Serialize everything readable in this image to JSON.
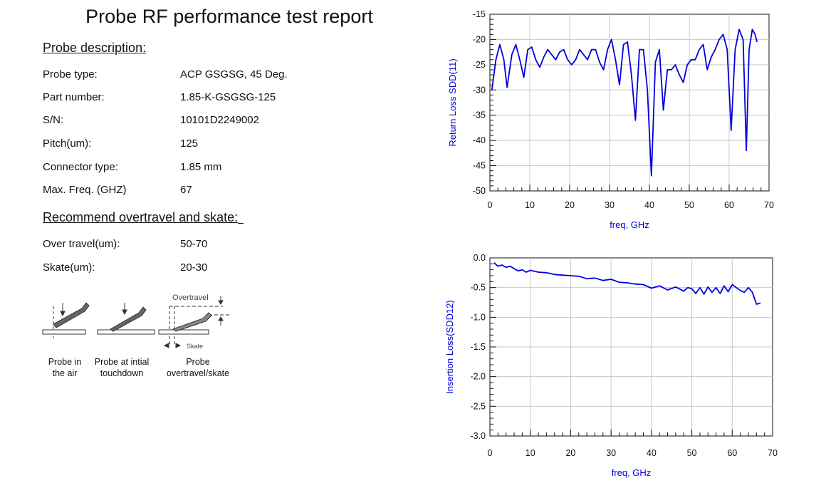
{
  "report_title": "Probe RF performance test report",
  "probe_description": {
    "heading": "Probe description:",
    "rows": [
      {
        "label": "Probe type:",
        "value": "ACP GSGSG, 45 Deg."
      },
      {
        "label": "Part number:",
        "value": "1.85-K-GSGSG-125"
      },
      {
        "label": "S/N:",
        "value": "10101D2249002"
      },
      {
        "label": "Pitch(um):",
        "value": "125"
      },
      {
        "label": "Connector type:",
        "value": "1.85 mm"
      },
      {
        "label": "Max. Freq. (GHZ)",
        "value": "67"
      }
    ]
  },
  "recommend": {
    "heading": "Recommend overtravel and skate:",
    "rows": [
      {
        "label": "Over travel(um):",
        "value": "50-70"
      },
      {
        "label": "Skate(um):",
        "value": "20-30"
      }
    ]
  },
  "diagram": {
    "overtravel_label": "Overtravel",
    "skate_label": "Skate",
    "captions": [
      "Probe in\nthe air",
      "Probe at intial\ntouchdown",
      "Probe\novertravel/skate"
    ]
  },
  "colors": {
    "trace": "#0000dd",
    "grid": "#c8c8c8"
  },
  "chart_data": [
    {
      "type": "line",
      "title": "",
      "xlabel": "freq, GHz",
      "ylabel": "Return Loss SDD(11)",
      "xlim": [
        0,
        70
      ],
      "ylim": [
        -50,
        -15
      ],
      "x_ticks": [
        0,
        10,
        20,
        30,
        40,
        50,
        60,
        70
      ],
      "x_tick_labels": [
        "0",
        "10",
        "20",
        "30",
        "40",
        "50",
        "60",
        "70"
      ],
      "y_ticks": [
        -15,
        -20,
        -25,
        -30,
        -35,
        -40,
        -45,
        -50
      ],
      "y_tick_labels": [
        "-15",
        "-20",
        "-25",
        "-30",
        "-35",
        "-40",
        "-45",
        "-50"
      ],
      "grid": true,
      "series": [
        {
          "x": [
            0.5,
            1.5,
            2.5,
            3.5,
            4.3,
            5.5,
            6.5,
            7.5,
            8.5,
            9.5,
            10.5,
            11.5,
            12.5,
            13.5,
            14.5,
            15.5,
            16.5,
            17.5,
            18.5,
            19.5,
            20.5,
            21.5,
            22.5,
            23.5,
            24.5,
            25.5,
            26.5,
            27.5,
            28.5,
            29.5,
            30.5,
            31.5,
            32.5,
            33.5,
            34.5,
            35.5,
            36.5,
            37.5,
            38.5,
            39.5,
            40.5,
            41.5,
            42.5,
            43.5,
            44.5,
            45.5,
            46.5,
            47.5,
            48.5,
            49.5,
            50.5,
            51.5,
            52.5,
            53.5,
            54.5,
            55.5,
            56.5,
            57.5,
            58.5,
            59.5,
            60.5,
            61.5,
            62.5,
            63.5,
            64.3,
            65.0,
            65.8,
            66.5,
            67.0
          ],
          "y": [
            -30,
            -24,
            -21,
            -24,
            -29.5,
            -23,
            -21,
            -24,
            -27.5,
            -22,
            -21.5,
            -24,
            -25.5,
            -23.5,
            -22,
            -23,
            -24,
            -22.5,
            -22,
            -24,
            -25,
            -24,
            -22,
            -23,
            -24,
            -22,
            -22,
            -24.5,
            -26,
            -22,
            -20,
            -24,
            -29,
            -21,
            -20.5,
            -27,
            -36,
            -22,
            -22,
            -30,
            -47,
            -24.5,
            -22,
            -34,
            -26,
            -26,
            -25,
            -27,
            -28.5,
            -25,
            -24,
            -24,
            -22,
            -21,
            -26,
            -23.5,
            -22,
            -20,
            -19,
            -22,
            -38,
            -22,
            -18,
            -20,
            -42,
            -22,
            -18,
            -19,
            -20.5
          ]
        }
      ]
    },
    {
      "type": "line",
      "title": "",
      "xlabel": "freq, GHz",
      "ylabel": "Insertion Loss(SDD12)",
      "xlim": [
        0,
        70
      ],
      "ylim": [
        -3.0,
        0.0
      ],
      "x_ticks": [
        0,
        10,
        20,
        30,
        40,
        50,
        60,
        70
      ],
      "x_tick_labels": [
        "0",
        "10",
        "20",
        "30",
        "40",
        "50",
        "60",
        "70"
      ],
      "y_ticks": [
        0.0,
        -0.5,
        -1.0,
        -1.5,
        -2.0,
        -2.5,
        -3.0
      ],
      "y_tick_labels": [
        "0.0",
        "-0.5",
        "-1.0",
        "-1.5",
        "-2.0",
        "-2.5",
        "-3.0"
      ],
      "grid": true,
      "series": [
        {
          "x": [
            1,
            2,
            3,
            4,
            5,
            6,
            7,
            8,
            9,
            10,
            12,
            14,
            16,
            18,
            20,
            22,
            24,
            26,
            28,
            30,
            32,
            34,
            36,
            38,
            40,
            42,
            44,
            46,
            48,
            49,
            50,
            51,
            52,
            53,
            54,
            55,
            56,
            57,
            58,
            59,
            60,
            61,
            62,
            63,
            64,
            65,
            66,
            67
          ],
          "y": [
            -0.08,
            -0.14,
            -0.12,
            -0.16,
            -0.14,
            -0.18,
            -0.22,
            -0.2,
            -0.24,
            -0.21,
            -0.24,
            -0.25,
            -0.28,
            -0.29,
            -0.3,
            -0.31,
            -0.35,
            -0.34,
            -0.38,
            -0.36,
            -0.41,
            -0.42,
            -0.44,
            -0.45,
            -0.51,
            -0.47,
            -0.54,
            -0.49,
            -0.56,
            -0.5,
            -0.52,
            -0.6,
            -0.5,
            -0.61,
            -0.49,
            -0.58,
            -0.5,
            -0.6,
            -0.47,
            -0.57,
            -0.45,
            -0.5,
            -0.55,
            -0.58,
            -0.5,
            -0.58,
            -0.78,
            -0.76
          ]
        }
      ]
    }
  ]
}
